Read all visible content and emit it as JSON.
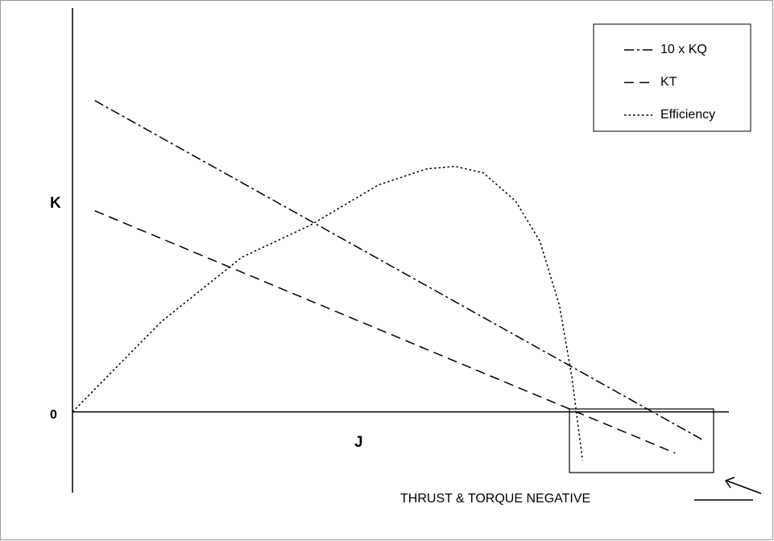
{
  "chart_data": {
    "type": "line",
    "xlabel": "J",
    "ylabel": "K",
    "xlim": [
      0,
      1.0
    ],
    "ylim": [
      -0.2,
      1.0
    ],
    "yticks": [
      0
    ],
    "grid": false,
    "legend": "upper right",
    "annotation": "THRUST & TORQUE NEGATIVE",
    "series": [
      {
        "name": "10 x KQ",
        "color": "#000000",
        "dash": "dashdot",
        "x": [
          0.034,
          0.961
        ],
        "values": [
          0.771,
          -0.07
        ]
      },
      {
        "name": "KT",
        "color": "#000000",
        "dash": "dashed",
        "x": [
          0.034,
          0.918
        ],
        "values": [
          0.498,
          -0.102
        ]
      },
      {
        "name": "Efficiency",
        "color": "#000000",
        "dash": "dotted",
        "x": [
          0,
          0.135,
          0.258,
          0.362,
          0.466,
          0.54,
          0.583,
          0.626,
          0.675,
          0.712,
          0.742,
          0.761,
          0.777
        ],
        "values": [
          0,
          0.223,
          0.383,
          0.462,
          0.562,
          0.602,
          0.608,
          0.592,
          0.522,
          0.423,
          0.263,
          0.084,
          -0.12
        ]
      }
    ]
  }
}
